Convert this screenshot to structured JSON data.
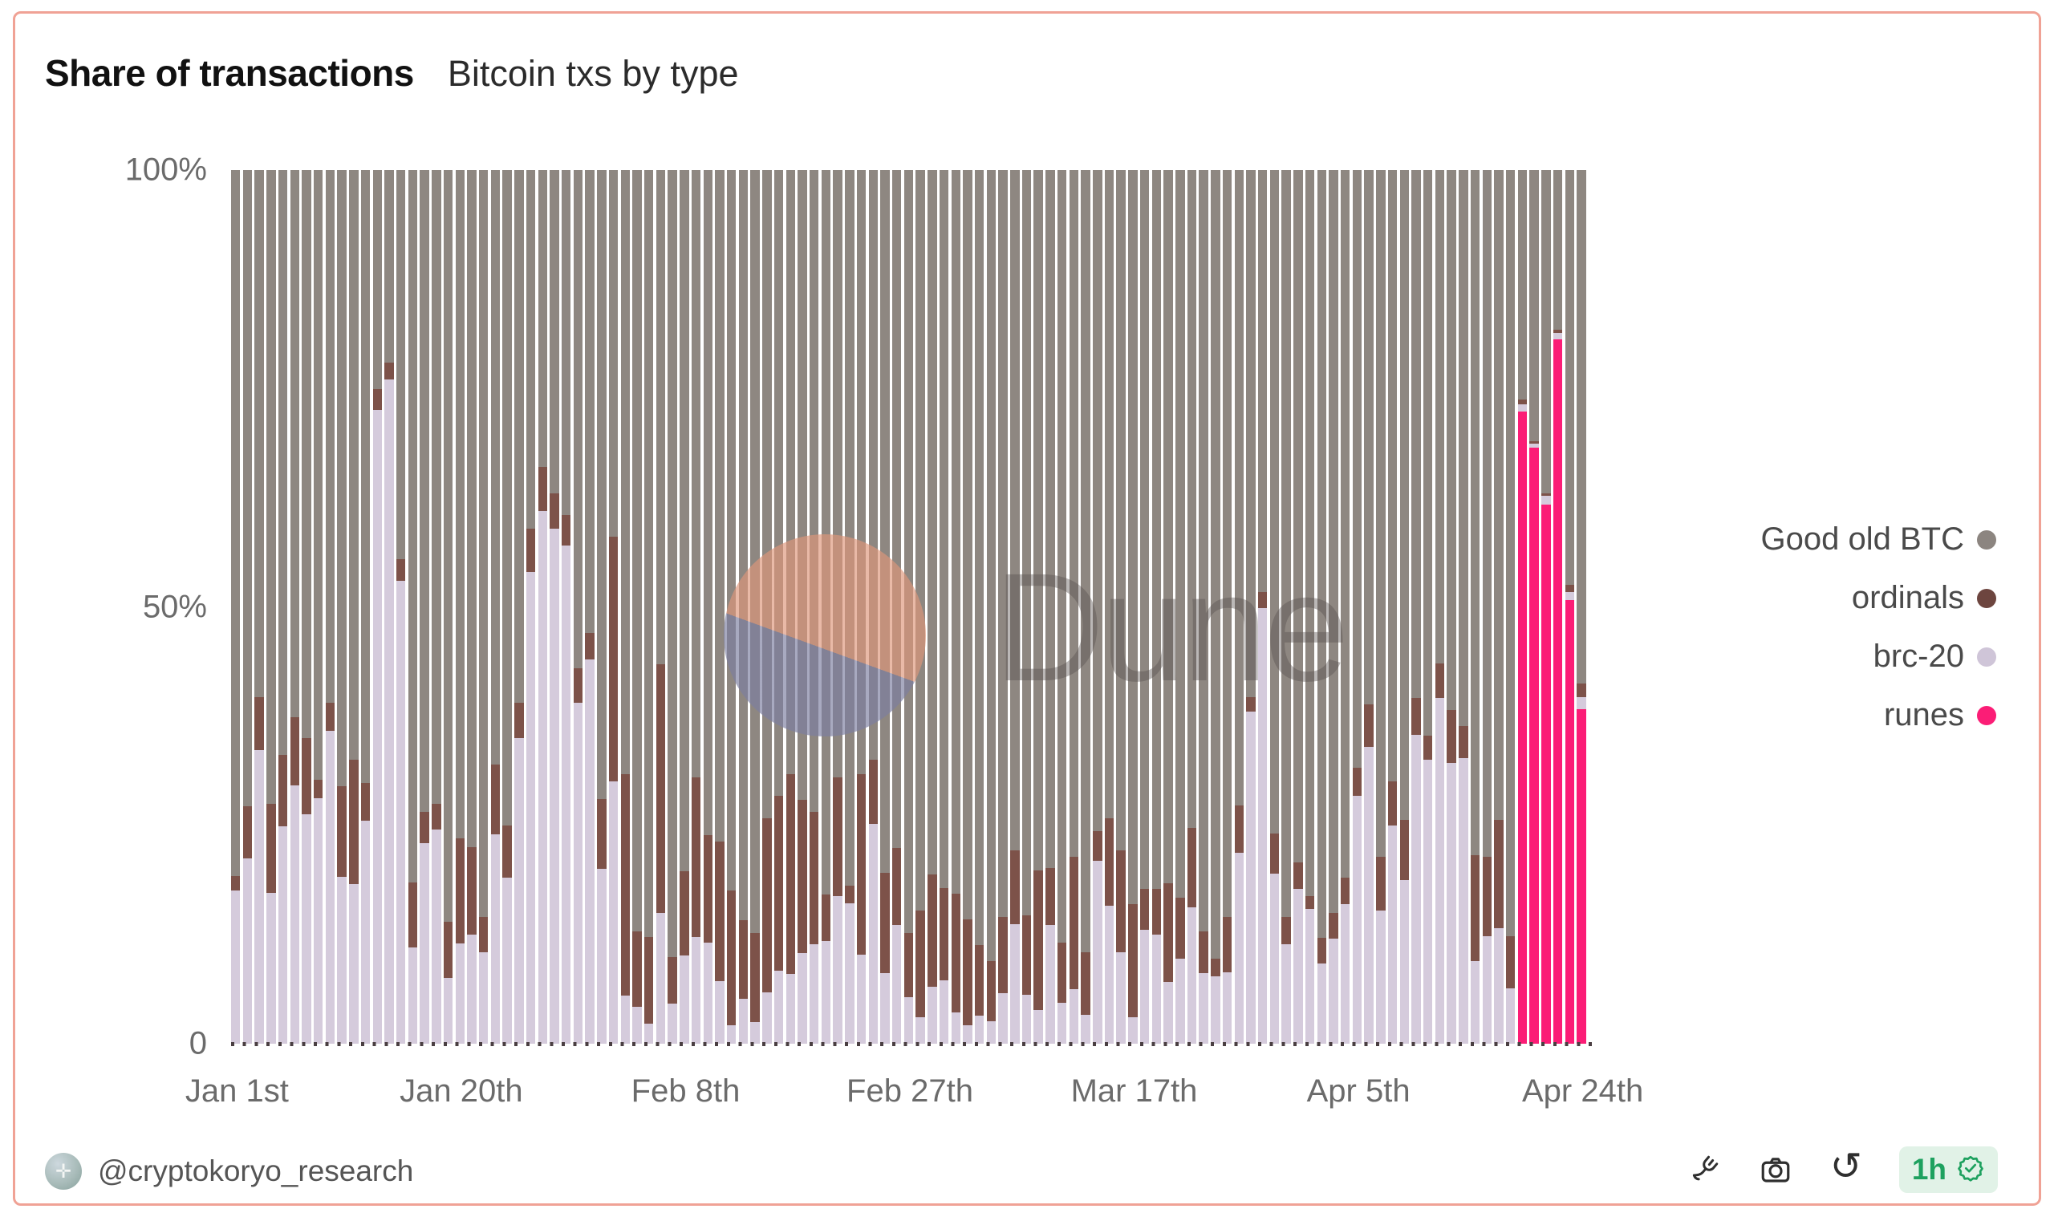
{
  "header": {
    "title": "Share of transactions",
    "subtitle": "Bitcoin txs by type"
  },
  "watermark": {
    "text": "Dune"
  },
  "footer": {
    "handle": "@cryptokoryo_research",
    "refresh_badge": "1h",
    "icons": [
      "fork-icon",
      "camera-icon",
      "refresh-icon",
      "verified-check-icon"
    ]
  },
  "chart_data": {
    "type": "bar",
    "stacked": true,
    "unit": "% share of daily Bitcoin transactions",
    "ylim": [
      0,
      100
    ],
    "grid": false,
    "legend_position": "right",
    "yticks": [
      {
        "label": "100%",
        "value": 100
      },
      {
        "label": "50%",
        "value": 50
      },
      {
        "label": "0",
        "value": 0
      }
    ],
    "xticks": [
      {
        "label": "Jan 1st",
        "day": 0
      },
      {
        "label": "Jan 20th",
        "day": 19
      },
      {
        "label": "Feb 8th",
        "day": 38
      },
      {
        "label": "Feb 27th",
        "day": 57
      },
      {
        "label": "Mar 17th",
        "day": 76
      },
      {
        "label": "Apr 5th",
        "day": 95
      },
      {
        "label": "Apr 24th",
        "day": 114
      }
    ],
    "legend": [
      {
        "name": "Good old BTC",
        "color": "#8c8580"
      },
      {
        "name": "ordinals",
        "color": "#6d453f"
      },
      {
        "name": "brc-20",
        "color": "#cfc5d8"
      },
      {
        "name": "runes",
        "color": "#fb1d76"
      }
    ],
    "colors": {
      "btc": "#8e8781",
      "ordinals": "#7d5249",
      "brc20": "#d5cbdc",
      "runes": "#fb1d76"
    },
    "stack_order_bottom_to_top": [
      "runes",
      "brc20",
      "ordinals",
      "btc"
    ],
    "note_btc": "Good old BTC = 100 minus sum of other segments",
    "day_fields": [
      "date",
      "brc20",
      "ordinals",
      "runes"
    ],
    "days": [
      [
        "Jan 1",
        17.5,
        1.7,
        0
      ],
      [
        "Jan 2",
        21.2,
        6,
        0
      ],
      [
        "Jan 3",
        33.6,
        6.1,
        0
      ],
      [
        "Jan 4",
        17.3,
        10.2,
        0
      ],
      [
        "Jan 5",
        24.9,
        8.2,
        0
      ],
      [
        "Jan 6",
        29.6,
        7.8,
        0
      ],
      [
        "Jan 7",
        26.3,
        8.7,
        0
      ],
      [
        "Jan 8",
        28.1,
        2.1,
        0
      ],
      [
        "Jan 9",
        35.8,
        3.2,
        0
      ],
      [
        "Jan 10",
        19.1,
        10.4,
        0
      ],
      [
        "Jan 11",
        18.3,
        14.2,
        0
      ],
      [
        "Jan 12",
        25.5,
        4.3,
        0
      ],
      [
        "Jan 13",
        72.5,
        2.4,
        0
      ],
      [
        "Jan 14",
        76,
        2,
        0
      ],
      [
        "Jan 15",
        53,
        2.5,
        0
      ],
      [
        "Jan 16",
        11,
        7.5,
        0
      ],
      [
        "Jan 17",
        23,
        3.5,
        0
      ],
      [
        "Jan 18",
        24.5,
        3,
        0
      ],
      [
        "Jan 19",
        7.5,
        6.5,
        0
      ],
      [
        "Jan 20",
        11.5,
        12,
        0
      ],
      [
        "Jan 21",
        12.5,
        10,
        0
      ],
      [
        "Jan 22",
        10.5,
        4,
        0
      ],
      [
        "Jan 23",
        24,
        8,
        0
      ],
      [
        "Jan 24",
        19,
        6,
        0
      ],
      [
        "Jan 25",
        35,
        4,
        0
      ],
      [
        "Jan 26",
        54,
        5,
        0
      ],
      [
        "Jan 27",
        61,
        5,
        0
      ],
      [
        "Jan 28",
        59,
        4,
        0
      ],
      [
        "Jan 29",
        57,
        3.5,
        0
      ],
      [
        "Jan 30",
        39,
        4,
        0
      ],
      [
        "Jan 31",
        44,
        3,
        0
      ],
      [
        "Feb 1",
        20,
        8,
        0
      ],
      [
        "Feb 2",
        30,
        28,
        0
      ],
      [
        "Feb 3",
        5.5,
        25.4,
        0
      ],
      [
        "Feb 4",
        4.2,
        8.7,
        0
      ],
      [
        "Feb 5",
        2.3,
        9.9,
        0
      ],
      [
        "Feb 6",
        15,
        28.4,
        0
      ],
      [
        "Feb 7",
        4.6,
        5.3,
        0
      ],
      [
        "Feb 8",
        10.1,
        9.6,
        0
      ],
      [
        "Feb 9",
        12.2,
        18.3,
        0
      ],
      [
        "Feb 10",
        11.6,
        12.3,
        0
      ],
      [
        "Feb 11",
        7.2,
        15.9,
        0
      ],
      [
        "Feb 12",
        2.1,
        15.4,
        0
      ],
      [
        "Feb 13",
        5.1,
        9,
        0
      ],
      [
        "Feb 14",
        2.5,
        10.2,
        0
      ],
      [
        "Feb 15",
        5.9,
        19.9,
        0
      ],
      [
        "Feb 16",
        8.4,
        20,
        0
      ],
      [
        "Feb 17",
        8,
        22.9,
        0
      ],
      [
        "Feb 18",
        10.4,
        17.5,
        0
      ],
      [
        "Feb 19",
        11.4,
        15.1,
        0
      ],
      [
        "Feb 20",
        11.8,
        5.3,
        0
      ],
      [
        "Feb 21",
        16.9,
        13.6,
        0
      ],
      [
        "Feb 22",
        16.1,
        2,
        0
      ],
      [
        "Feb 23",
        10.2,
        20.7,
        0
      ],
      [
        "Feb 24",
        25.2,
        7.3,
        0
      ],
      [
        "Feb 25",
        8.1,
        11.5,
        0
      ],
      [
        "Feb 26",
        13.6,
        8.8,
        0
      ],
      [
        "Feb 27",
        5.3,
        7.4,
        0
      ],
      [
        "Feb 28",
        3,
        12.2,
        0
      ],
      [
        "Feb 29",
        6.5,
        12.9,
        0
      ],
      [
        "Mar 1",
        7.3,
        10.5,
        0
      ],
      [
        "Mar 2",
        3.6,
        13.6,
        0
      ],
      [
        "Mar 3",
        2.1,
        12.1,
        0
      ],
      [
        "Mar 4",
        3.2,
        8.1,
        0
      ],
      [
        "Mar 5",
        2.6,
        6.9,
        0
      ],
      [
        "Mar 6",
        5.8,
        8.7,
        0
      ],
      [
        "Mar 7",
        13.7,
        8.4,
        0
      ],
      [
        "Mar 8",
        5.6,
        9.1,
        0
      ],
      [
        "Mar 9",
        3.9,
        15.9,
        0
      ],
      [
        "Mar 10",
        13.6,
        6.5,
        0
      ],
      [
        "Mar 11",
        4.7,
        6.9,
        0
      ],
      [
        "Mar 12",
        6.2,
        15.2,
        0
      ],
      [
        "Mar 13",
        3.3,
        7.2,
        0
      ],
      [
        "Mar 14",
        20.9,
        3.4,
        0
      ],
      [
        "Mar 15",
        15.8,
        10,
        0
      ],
      [
        "Mar 16",
        10.5,
        11.6,
        0
      ],
      [
        "Mar 17",
        3,
        13,
        0
      ],
      [
        "Mar 18",
        13,
        4.7,
        0
      ],
      [
        "Mar 19",
        12.5,
        5.2,
        0
      ],
      [
        "Mar 20",
        7.1,
        11.3,
        0
      ],
      [
        "Mar 21",
        9.7,
        7,
        0
      ],
      [
        "Mar 22",
        15.6,
        9.1,
        0
      ],
      [
        "Mar 23",
        8.1,
        4.8,
        0
      ],
      [
        "Mar 24",
        7.7,
        2,
        0
      ],
      [
        "Mar 25",
        8.2,
        6.3,
        0
      ],
      [
        "Mar 26",
        21.9,
        5.4,
        0
      ],
      [
        "Mar 27",
        38,
        1.7,
        0
      ],
      [
        "Mar 28",
        49.9,
        1.8,
        0
      ],
      [
        "Mar 29",
        19.5,
        4.6,
        0
      ],
      [
        "Mar 30",
        11.4,
        3.1,
        0
      ],
      [
        "Mar 31",
        17.7,
        3.1,
        0
      ],
      [
        "Apr 1",
        15.4,
        1.5,
        0
      ],
      [
        "Apr 2",
        9.2,
        2.9,
        0
      ],
      [
        "Apr 3",
        12,
        3,
        0
      ],
      [
        "Apr 4",
        16,
        3,
        0
      ],
      [
        "Apr 5",
        28.4,
        3.2,
        0
      ],
      [
        "Apr 6",
        34,
        4.8,
        0
      ],
      [
        "Apr 7",
        15.2,
        6.2,
        0
      ],
      [
        "Apr 8",
        25,
        5,
        0
      ],
      [
        "Apr 9",
        18.7,
        6.9,
        0
      ],
      [
        "Apr 10",
        35.4,
        4.2,
        0
      ],
      [
        "Apr 11",
        32.5,
        2.8,
        0
      ],
      [
        "Apr 12",
        39.6,
        3.9,
        0
      ],
      [
        "Apr 13",
        32.1,
        6.1,
        0
      ],
      [
        "Apr 14",
        32.7,
        3.7,
        0
      ],
      [
        "Apr 15",
        9.5,
        12.1,
        0
      ],
      [
        "Apr 16",
        12.3,
        9.1,
        0
      ],
      [
        "Apr 17",
        13.2,
        12.4,
        0
      ],
      [
        "Apr 18",
        6.3,
        6,
        0
      ],
      [
        "Apr 19",
        0.8,
        0.5,
        72.4
      ],
      [
        "Apr 20",
        0.5,
        0.3,
        68.2
      ],
      [
        "Apr 21",
        1,
        0.3,
        61.7
      ],
      [
        "Apr 22",
        0.8,
        0.3,
        80.6
      ],
      [
        "Apr 23",
        0.9,
        0.8,
        50.8
      ],
      [
        "Apr 24",
        1.4,
        1.5,
        38.3
      ]
    ]
  }
}
